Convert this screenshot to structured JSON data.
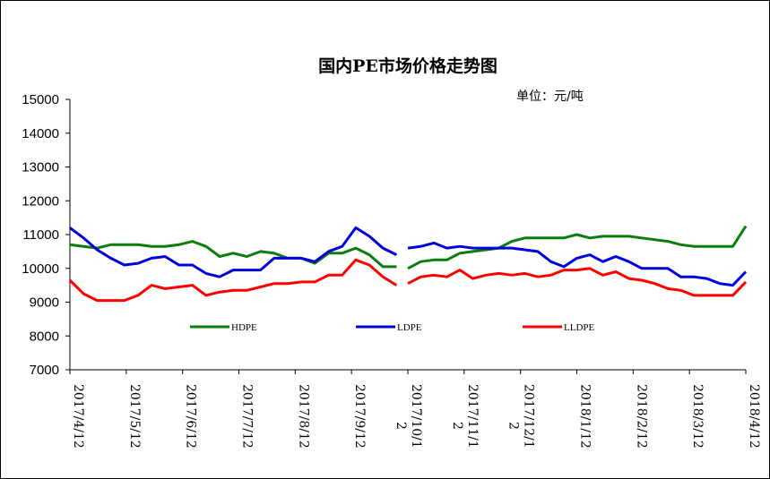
{
  "chart_data": {
    "type": "line",
    "title": "国内PE市场价格走势图",
    "unit": "单位：元/吨",
    "ylim": [
      7000,
      15000
    ],
    "yticks": [
      7000,
      8000,
      9000,
      10000,
      11000,
      12000,
      13000,
      14000,
      15000
    ],
    "xlabels": [
      {
        "text": "2017/4/12",
        "wrap": ""
      },
      {
        "text": "2017/5/12",
        "wrap": ""
      },
      {
        "text": "2017/6/12",
        "wrap": ""
      },
      {
        "text": "2017/7/12",
        "wrap": ""
      },
      {
        "text": "2017/8/12",
        "wrap": ""
      },
      {
        "text": "2017/9/12",
        "wrap": ""
      },
      {
        "text": "2017/10/1",
        "wrap": "2"
      },
      {
        "text": "2017/11/1",
        "wrap": "2"
      },
      {
        "text": "2017/12/1",
        "wrap": "2"
      },
      {
        "text": "2018/1/12",
        "wrap": ""
      },
      {
        "text": "2018/2/12",
        "wrap": ""
      },
      {
        "text": "2018/3/12",
        "wrap": ""
      },
      {
        "text": "2018/4/12",
        "wrap": ""
      }
    ],
    "legend_placement": "inside-bottom",
    "grid": false,
    "series": [
      {
        "name": "HDPE",
        "color": "#0a7d0a",
        "segments": [
          [
            10700,
            10650,
            10600,
            10700,
            10700,
            10700,
            10650,
            10650,
            10700,
            10800,
            10650,
            10350,
            10450,
            10350,
            10500,
            10450,
            10300,
            10300,
            10150,
            10450,
            10450,
            10600,
            10400,
            10050,
            10050
          ],
          [
            10000,
            10200,
            10250,
            10250,
            10450,
            10500,
            10550,
            10600,
            10800,
            10900,
            10900,
            10900,
            10900,
            11000,
            10900,
            10950,
            10950,
            10950,
            10900,
            10850,
            10800,
            10700,
            10650,
            10650,
            10650,
            10650,
            11250
          ]
        ]
      },
      {
        "name": "LDPE",
        "color": "#0000dd",
        "segments": [
          [
            11200,
            10900,
            10550,
            10300,
            10100,
            10150,
            10300,
            10350,
            10100,
            10100,
            9850,
            9750,
            9950,
            9950,
            9950,
            10300,
            10300,
            10300,
            10200,
            10500,
            10650,
            11200,
            10950,
            10600,
            10400
          ],
          [
            10600,
            10650,
            10750,
            10600,
            10650,
            10600,
            10600,
            10600,
            10600,
            10550,
            10500,
            10200,
            10050,
            10300,
            10400,
            10200,
            10350,
            10200,
            10000,
            10000,
            10000,
            9750,
            9750,
            9700,
            9550,
            9500,
            9900
          ]
        ]
      },
      {
        "name": "LLDPE",
        "color": "#ff0000",
        "segments": [
          [
            9650,
            9250,
            9050,
            9050,
            9050,
            9200,
            9500,
            9400,
            9450,
            9500,
            9200,
            9300,
            9350,
            9350,
            9450,
            9550,
            9550,
            9600,
            9600,
            9800,
            9800,
            10250,
            10100,
            9750,
            9500
          ],
          [
            9550,
            9750,
            9800,
            9750,
            9950,
            9700,
            9800,
            9850,
            9800,
            9850,
            9750,
            9800,
            9950,
            9950,
            10000,
            9800,
            9900,
            9700,
            9650,
            9550,
            9400,
            9350,
            9200,
            9200,
            9200,
            9200,
            9600
          ]
        ]
      }
    ]
  }
}
